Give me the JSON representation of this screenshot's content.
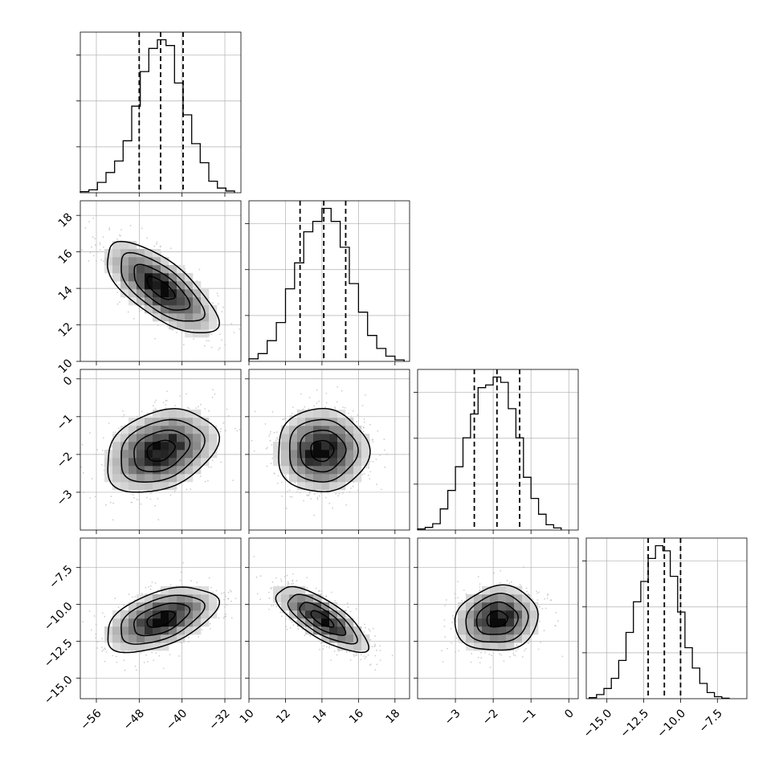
{
  "chart_data": {
    "type": "corner",
    "parameters": [
      {
        "ticks": [
          -56,
          -48,
          -40,
          -32
        ],
        "tick_labels": [
          "−56",
          "−48",
          "−40",
          "−32"
        ],
        "range": [
          -59,
          -29
        ]
      },
      {
        "ticks": [
          10,
          12,
          14,
          16,
          18
        ],
        "tick_labels": [
          "10",
          "12",
          "14",
          "16",
          "18"
        ],
        "range": [
          10,
          18.8
        ]
      },
      {
        "ticks": [
          -3,
          -2,
          -1,
          0
        ],
        "tick_labels": [
          "−3",
          "−2",
          "−1",
          "0"
        ],
        "range": [
          -4.0,
          0.25
        ]
      },
      {
        "ticks": [
          -15.0,
          -12.5,
          -10.0,
          -7.5
        ],
        "tick_labels": [
          "−15.0",
          "−12.5",
          "−10.0",
          "−7.5"
        ],
        "range": [
          -16.4,
          -5.5
        ]
      }
    ],
    "marginals": [
      {
        "quantiles": [
          -48.0,
          -44.0,
          -39.8
        ],
        "bins": [
          -59,
          -57.4,
          -55.8,
          -54.2,
          -52.6,
          -51.0,
          -49.4,
          -47.8,
          -46.2,
          -44.6,
          -43.0,
          -41.4,
          -39.8,
          -38.2,
          -36.6,
          -35.0,
          -33.4,
          -31.8,
          -30.2
        ],
        "counts": [
          2,
          5,
          18,
          35,
          55,
          90,
          150,
          210,
          250,
          265,
          255,
          190,
          135,
          85,
          52,
          20,
          8,
          3
        ]
      },
      {
        "quantiles": [
          12.8,
          14.1,
          15.3
        ],
        "bins": [
          10.0,
          10.5,
          11.0,
          11.5,
          12.0,
          12.5,
          13.0,
          13.5,
          14.0,
          14.5,
          15.0,
          15.5,
          16.0,
          16.5,
          17.0,
          17.5,
          18.0,
          18.5
        ],
        "counts": [
          5,
          15,
          40,
          75,
          140,
          190,
          250,
          270,
          295,
          270,
          220,
          150,
          95,
          50,
          25,
          10,
          3
        ]
      },
      {
        "quantiles": [
          -2.5,
          -1.9,
          -1.3
        ],
        "bins": [
          -4.0,
          -3.8,
          -3.6,
          -3.4,
          -3.2,
          -3.0,
          -2.8,
          -2.6,
          -2.4,
          -2.2,
          -2.0,
          -1.8,
          -1.6,
          -1.4,
          -1.2,
          -1.0,
          -0.8,
          -0.6,
          -0.4,
          -0.2
        ],
        "counts": [
          2,
          5,
          12,
          40,
          75,
          120,
          175,
          220,
          270,
          275,
          290,
          280,
          230,
          175,
          100,
          60,
          30,
          10,
          4
        ]
      },
      {
        "quantiles": [
          -12.2,
          -11.1,
          -10.0
        ],
        "bins": [
          -16.2,
          -15.7,
          -15.2,
          -14.7,
          -14.2,
          -13.7,
          -13.2,
          -12.7,
          -12.2,
          -11.7,
          -11.2,
          -10.7,
          -10.2,
          -9.7,
          -9.2,
          -8.7,
          -8.2,
          -7.7,
          -7.2,
          -6.7
        ],
        "counts": [
          2,
          8,
          20,
          40,
          75,
          130,
          190,
          230,
          275,
          300,
          290,
          240,
          170,
          100,
          60,
          30,
          12,
          4,
          1
        ]
      }
    ],
    "pairs": [
      {
        "row": 1,
        "col": 0,
        "mean": [
          -44.0,
          14.0
        ],
        "sd": [
          5.2,
          1.25
        ],
        "rho": -0.7
      },
      {
        "row": 2,
        "col": 0,
        "mean": [
          -44.0,
          -1.9
        ],
        "sd": [
          5.2,
          0.55
        ],
        "rho": 0.3
      },
      {
        "row": 2,
        "col": 1,
        "mean": [
          14.0,
          -1.9
        ],
        "sd": [
          1.25,
          0.55
        ],
        "rho": 0.0
      },
      {
        "row": 3,
        "col": 0,
        "mean": [
          -44.0,
          -11.0
        ],
        "sd": [
          5.2,
          1.1
        ],
        "rho": 0.5
      },
      {
        "row": 3,
        "col": 1,
        "mean": [
          14.0,
          -11.0
        ],
        "sd": [
          1.25,
          1.1
        ],
        "rho": -0.75
      },
      {
        "row": 3,
        "col": 2,
        "mean": [
          -1.9,
          -11.0
        ],
        "sd": [
          0.55,
          1.1
        ],
        "rho": 0.1
      }
    ],
    "contour_levels_sigma": [
      0.5,
      1.0,
      1.5,
      2.0
    ],
    "grid": true,
    "colors": {
      "hist": "#000000",
      "points": "#bdbdbd",
      "grid": "#b0b0b0",
      "contour": "#000000"
    }
  }
}
